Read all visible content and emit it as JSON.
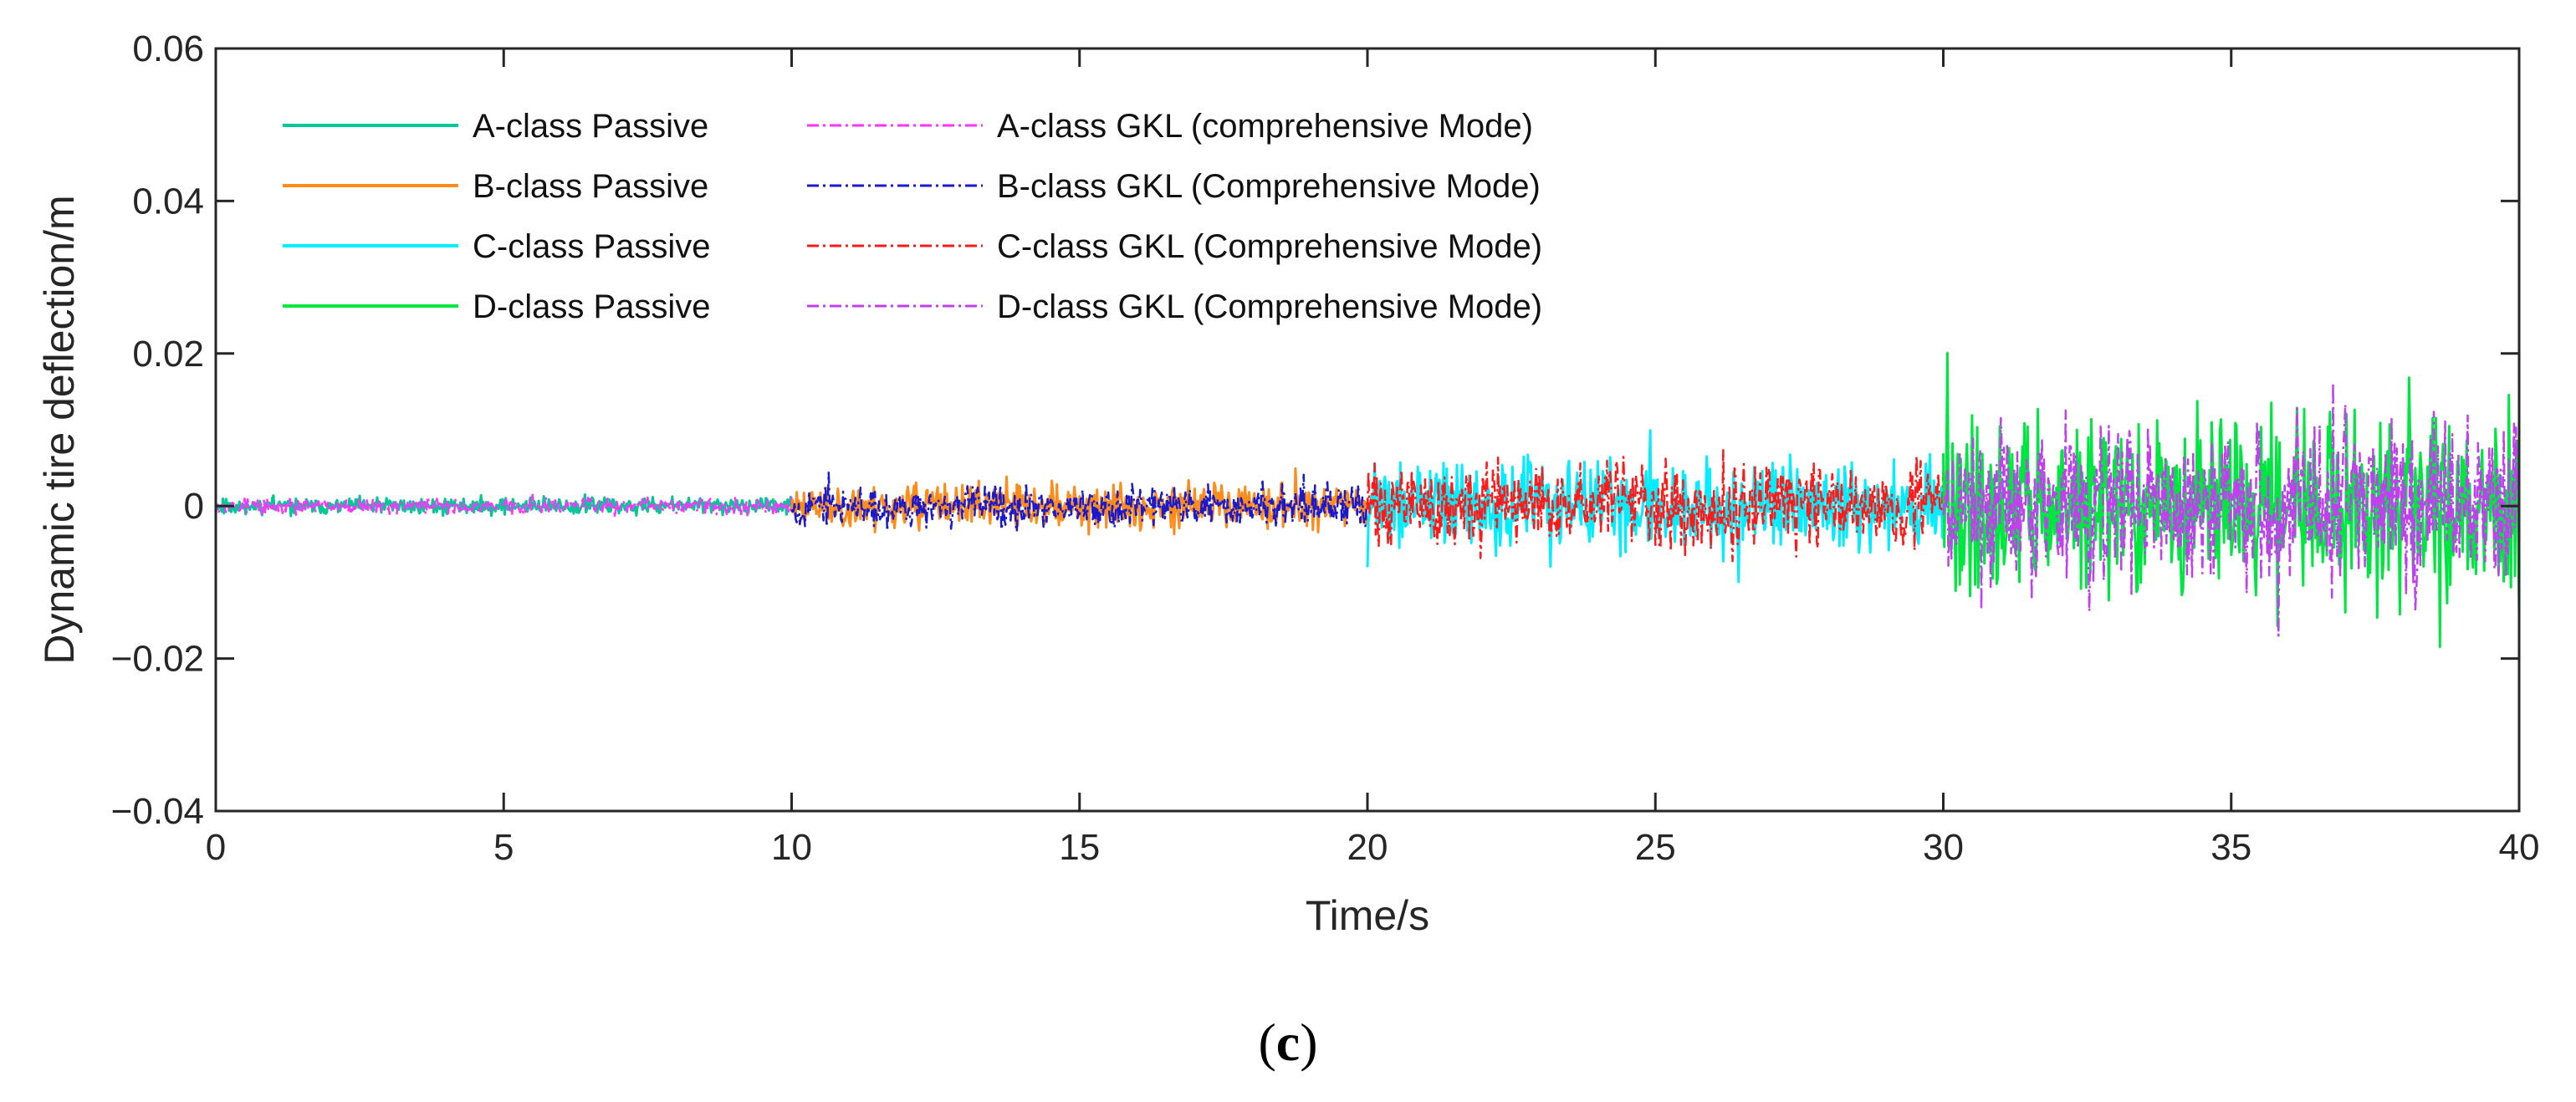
{
  "chart_data": {
    "type": "line",
    "xlabel": "Time/s",
    "ylabel": "Dynamic tire deflection/m",
    "xlim": [
      0,
      40
    ],
    "ylim": [
      -0.04,
      0.06
    ],
    "xticks": [
      0,
      5,
      10,
      15,
      20,
      25,
      30,
      35,
      40
    ],
    "yticks": [
      -0.04,
      -0.02,
      0,
      0.02,
      0.04,
      0.06
    ],
    "xtick_labels": [
      "0",
      "5",
      "10",
      "15",
      "20",
      "25",
      "30",
      "35",
      "40"
    ],
    "ytick_labels": [
      "−0.04",
      "−0.02",
      "0",
      "0.02",
      "0.04",
      "0.06"
    ],
    "grid": false,
    "legend_position": "top-left",
    "series": [
      {
        "name": "A-class Passive",
        "color": "#00c896",
        "style": "solid",
        "x_range": [
          0,
          10
        ],
        "amplitude": 0.0025,
        "seed": 11
      },
      {
        "name": "B-class Passive",
        "color": "#ff8c1a",
        "style": "solid",
        "x_range": [
          10,
          20
        ],
        "amplitude": 0.0065,
        "seed": 23
      },
      {
        "name": "C-class Passive",
        "color": "#00eeff",
        "style": "solid",
        "x_range": [
          20,
          30
        ],
        "amplitude": 0.0135,
        "seed": 37
      },
      {
        "name": "D-class Passive",
        "color": "#00e640",
        "style": "solid",
        "x_range": [
          30,
          40
        ],
        "amplitude": 0.027,
        "seed": 41
      },
      {
        "name": "A-class GKL (comprehensive Mode)",
        "color": "#ff33ff",
        "style": "dashdot",
        "x_range": [
          0,
          10
        ],
        "amplitude": 0.0023,
        "seed": 53
      },
      {
        "name": "B-class GKL (Comprehensive Mode)",
        "color": "#1a1acc",
        "style": "dashdot",
        "x_range": [
          10,
          20
        ],
        "amplitude": 0.006,
        "seed": 67
      },
      {
        "name": "C-class GKL (Comprehensive Mode)",
        "color": "#ff1a1a",
        "style": "dashdot",
        "x_range": [
          20,
          30
        ],
        "amplitude": 0.013,
        "seed": 71
      },
      {
        "name": "D-class GKL (Comprehensive Mode)",
        "color": "#c040f0",
        "style": "dashdot",
        "x_range": [
          30,
          40
        ],
        "amplitude": 0.025,
        "seed": 89
      }
    ]
  },
  "caption": {
    "open": "(",
    "letter": "c",
    "close": ")"
  }
}
